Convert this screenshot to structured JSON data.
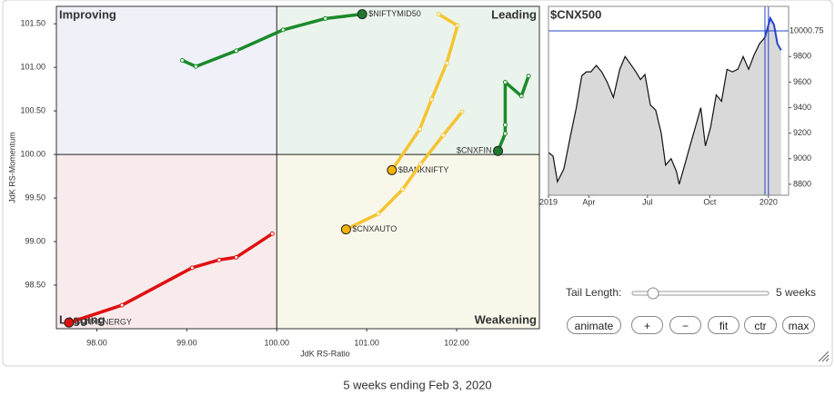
{
  "chart_data": [
    {
      "type": "rrg",
      "xlabel": "JdK RS-Ratio",
      "ylabel": "JdK RS-Momentum",
      "xlim": [
        97.55,
        102.92
      ],
      "ylim": [
        98.0,
        101.7
      ],
      "xticks": [
        {
          "value": 98,
          "label": "98.00"
        },
        {
          "value": 99,
          "label": "99.00"
        },
        {
          "value": 100,
          "label": "100.00"
        },
        {
          "value": 101,
          "label": "101.00"
        },
        {
          "value": 102,
          "label": "102.00"
        }
      ],
      "yticks": [
        {
          "value": 98.5,
          "label": "98.50"
        },
        {
          "value": 99,
          "label": "99.00"
        },
        {
          "value": 99.5,
          "label": "99.50"
        },
        {
          "value": 100,
          "label": "100.00"
        },
        {
          "value": 100.5,
          "label": "100.50"
        },
        {
          "value": 101,
          "label": "101.00"
        },
        {
          "value": 101.5,
          "label": "101.50"
        }
      ],
      "center": {
        "x": 100,
        "y": 100
      },
      "quadrants": [
        {
          "name": "Improving",
          "color": "#8193d8",
          "fill": "#eff0f8"
        },
        {
          "name": "Leading",
          "color": "#5cb36e",
          "fill": "#ebf4ec"
        },
        {
          "name": "Weakening",
          "color": "#e6c232",
          "fill": "#f8f7ea"
        },
        {
          "name": "Lagging",
          "color": "#e05050",
          "fill": "#f9ebec"
        }
      ],
      "series": [
        {
          "name": "$NIFTYMID50",
          "color": "#1a8a2a",
          "head_color": "#1e7a2e",
          "x": [
            98.95,
            99.1,
            99.55,
            100.07,
            100.54,
            100.95
          ],
          "values": [
            101.08,
            101.01,
            101.19,
            101.43,
            101.56,
            101.61
          ]
        },
        {
          "name": "$CNXFIN",
          "color": "#1a8a2a",
          "head_color": "#1e7a2e",
          "x": [
            102.8,
            102.72,
            102.54,
            102.54,
            102.54,
            102.46
          ],
          "values": [
            100.9,
            100.67,
            100.83,
            100.34,
            100.24,
            100.04
          ]
        },
        {
          "name": "$BANKNIFTY",
          "color": "#f5c431",
          "head_color": "#f4b400",
          "x": [
            101.8,
            102.01,
            101.89,
            101.72,
            101.59,
            101.28
          ],
          "values": [
            101.61,
            101.48,
            101.05,
            100.63,
            100.29,
            99.82
          ]
        },
        {
          "name": "$CNXAUTO",
          "color": "#f5c431",
          "head_color": "#f4b400",
          "x": [
            102.06,
            101.85,
            101.6,
            101.4,
            101.13,
            100.77
          ],
          "values": [
            100.49,
            100.22,
            99.89,
            99.6,
            99.32,
            99.14
          ]
        },
        {
          "name": "$CNXENERGY",
          "color": "#e01010",
          "head_color": "#e01010",
          "x": [
            99.95,
            99.55,
            99.36,
            99.06,
            98.28,
            97.69
          ],
          "values": [
            99.09,
            98.82,
            98.79,
            98.7,
            98.27,
            98.07
          ]
        }
      ]
    },
    {
      "type": "line",
      "title": "$CNX500",
      "xlim": [
        0,
        13.1
      ],
      "ylim": [
        8714,
        10193
      ],
      "xticks": [
        {
          "value": 0,
          "label": "2019"
        },
        {
          "value": 2.2,
          "label": "Apr"
        },
        {
          "value": 5.4,
          "label": "Jul"
        },
        {
          "value": 8.8,
          "label": "Oct"
        },
        {
          "value": 12,
          "label": "2020"
        }
      ],
      "yticks": [
        8800,
        9000,
        9200,
        9400,
        9600,
        9800
      ],
      "area_color": "#d9d9d9",
      "last_value": {
        "value": 10000.75,
        "label": "10000.75"
      },
      "marker_color": "#2545c8",
      "period_x": [
        11.81,
        12.0
      ],
      "series": [
        {
          "color": "#111111",
          "x": [
            0,
            0.25,
            0.49,
            0.84,
            1.23,
            1.52,
            1.82,
            2.07,
            2.31,
            2.61,
            2.9,
            3.2,
            3.54,
            3.89,
            4.18,
            4.48,
            4.77,
            5.02,
            5.26,
            5.56,
            5.85,
            6.15,
            6.39,
            6.69,
            6.98,
            7.13,
            7.43,
            7.72,
            8.02,
            8.31,
            8.56,
            8.85,
            9.15,
            9.44,
            9.74,
            10.03,
            10.33,
            10.62,
            10.92,
            11.21,
            11.51,
            11.81
          ],
          "values": [
            9050,
            9020,
            8820,
            8920,
            9200,
            9400,
            9650,
            9680,
            9680,
            9730,
            9680,
            9600,
            9480,
            9700,
            9800,
            9740,
            9680,
            9620,
            9660,
            9420,
            9380,
            9200,
            8950,
            9000,
            8900,
            8800,
            8950,
            9100,
            9250,
            9400,
            9100,
            9250,
            9500,
            9450,
            9700,
            9680,
            9700,
            9800,
            9700,
            9810,
            9900,
            9950
          ]
        },
        {
          "color": "#2545c8",
          "x": [
            11.81,
            12.1,
            12.3,
            12.49,
            12.69
          ],
          "values": [
            9950,
            10100,
            10050,
            9900,
            9850
          ]
        }
      ]
    }
  ],
  "controls": {
    "tail_label": "Tail Length:",
    "tail_value": "5 weeks",
    "buttons": [
      "animate",
      "+",
      "−",
      "fit",
      "ctr",
      "max"
    ]
  },
  "footer": "5 weeks ending Feb 3, 2020"
}
